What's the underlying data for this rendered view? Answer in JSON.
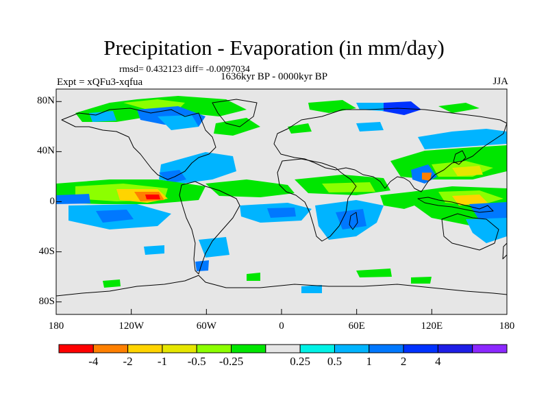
{
  "title": "Precipitation - Evaporation (in mm/day)",
  "stats": "rmsd= 0.432123 diff= -0.0097034",
  "experiment": "Expt = xQFu3-xqfua",
  "period": "1636kyr BP - 0000kyr BP",
  "season": "JJA",
  "map": {
    "projection": "cylindrical equidistant",
    "lon_range": [
      -180,
      180
    ],
    "lat_range": [
      -90,
      90
    ],
    "background_color": "#e6e6e6",
    "y_ticks": [
      {
        "lat": 80,
        "label": "80N"
      },
      {
        "lat": 40,
        "label": "40N"
      },
      {
        "lat": 0,
        "label": "0"
      },
      {
        "lat": -40,
        "label": "40S"
      },
      {
        "lat": -80,
        "label": "80S"
      }
    ],
    "x_ticks": [
      {
        "lon": -180,
        "label": "180"
      },
      {
        "lon": -120,
        "label": "120W"
      },
      {
        "lon": -60,
        "label": "60W"
      },
      {
        "lon": 0,
        "label": "0"
      },
      {
        "lon": 60,
        "label": "60E"
      },
      {
        "lon": 120,
        "label": "120E"
      },
      {
        "lon": 180,
        "label": "180"
      }
    ]
  },
  "colorbar": {
    "colors": [
      "#ff0000",
      "#ff8000",
      "#ffd400",
      "#e6e600",
      "#8cff00",
      "#00e600",
      "#e6e6e6",
      "#00f2e6",
      "#00b4ff",
      "#0078ff",
      "#0032ff",
      "#1e1ee6",
      "#8c28ff"
    ],
    "labels": [
      "-4",
      "-2",
      "-1",
      "-0.5",
      "-0.25",
      "0.25",
      "0.5",
      "1",
      "2",
      "4"
    ]
  }
}
